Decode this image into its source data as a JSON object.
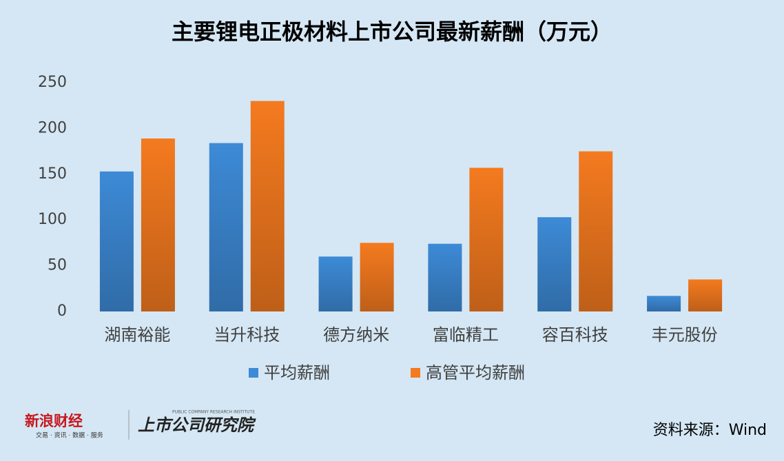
{
  "chart_data": {
    "type": "bar",
    "title": "主要锂电正极材料上市公司最新薪酬（万元）",
    "categories": [
      "湖南裕能",
      "当升科技",
      "德方纳米",
      "富临精工",
      "容百科技",
      "丰元股份"
    ],
    "series": [
      {
        "name": "平均薪酬",
        "color": "#3d8ad6",
        "values": [
          153,
          184,
          60,
          74,
          103,
          17
        ]
      },
      {
        "name": "高管平均薪酬",
        "color": "#f47a1f",
        "values": [
          189,
          230,
          75,
          157,
          175,
          35
        ]
      }
    ],
    "ylim": [
      0,
      250
    ],
    "yticks": [
      0,
      50,
      100,
      150,
      200,
      250
    ],
    "grid": false,
    "legend": "bottom"
  },
  "footer": {
    "logo_left": "新浪财经",
    "logo_left_sub": "交易 · 资讯 · 数据 · 服务",
    "logo_right": "上市公司研究院",
    "logo_right_sub": "PUBLIC COMPANY RESEARCH INSTITUTE",
    "source": "资料来源：Wind"
  }
}
